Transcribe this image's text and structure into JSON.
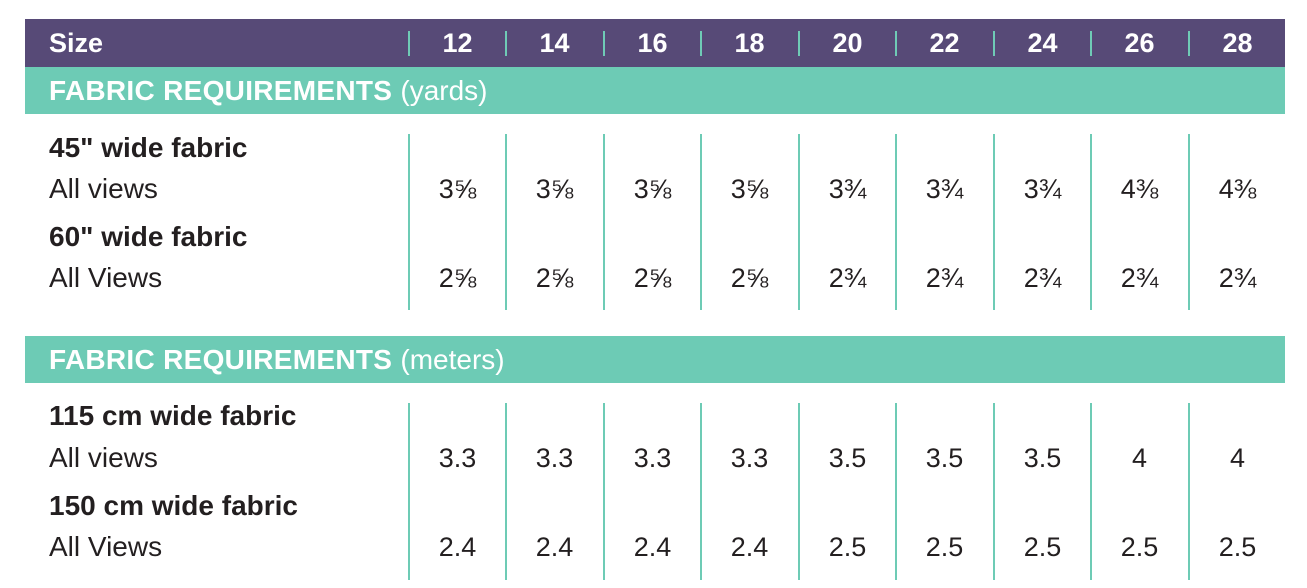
{
  "header": {
    "size_label": "Size",
    "sizes": [
      "12",
      "14",
      "16",
      "18",
      "20",
      "22",
      "24",
      "26",
      "28"
    ]
  },
  "sections": [
    {
      "title": "FABRIC REQUIREMENTS",
      "unit": "(yards)",
      "groups": [
        {
          "label": "45\" wide fabric",
          "sublabel": "All views",
          "values": [
            "3⅝",
            "3⅝",
            "3⅝",
            "3⅝",
            "3¾",
            "3¾",
            "3¾",
            "4⅜",
            "4⅜"
          ]
        },
        {
          "label": "60\" wide fabric",
          "sublabel": "All Views",
          "values": [
            "2⅝",
            "2⅝",
            "2⅝",
            "2⅝",
            "2¾",
            "2¾",
            "2¾",
            "2¾",
            "2¾"
          ]
        }
      ]
    },
    {
      "title": "FABRIC REQUIREMENTS",
      "unit": "(meters)",
      "groups": [
        {
          "label": "115 cm wide fabric",
          "sublabel": "All views",
          "values": [
            "3.3",
            "3.3",
            "3.3",
            "3.3",
            "3.5",
            "3.5",
            "3.5",
            "4",
            "4"
          ]
        },
        {
          "label": "150 cm wide fabric",
          "sublabel": "All Views",
          "values": [
            "2.4",
            "2.4",
            "2.4",
            "2.4",
            "2.5",
            "2.5",
            "2.5",
            "2.5",
            "2.5"
          ]
        }
      ]
    }
  ],
  "colors": {
    "header_bg": "#574a77",
    "accent": "#6dcbb5",
    "text": "#231f20"
  }
}
